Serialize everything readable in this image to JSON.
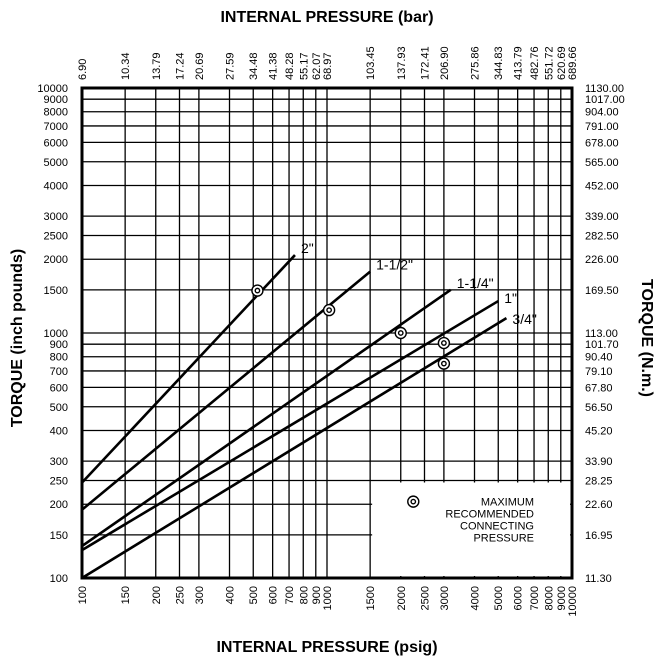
{
  "chart_data": {
    "type": "line",
    "title": "",
    "top_xlabel": "INTERNAL PRESSURE (bar)",
    "xlabel": "INTERNAL PRESSURE (psig)",
    "ylabel": "TORQUE (inch pounds)",
    "right_ylabel": "TORQUE (N.m.)",
    "xscale": "log",
    "yscale": "log",
    "xlim": [
      100,
      10000
    ],
    "ylim": [
      100,
      10000
    ],
    "grid": true,
    "x_ticks": [
      {
        "value": 100,
        "label": "100"
      },
      {
        "value": 150,
        "label": "150"
      },
      {
        "value": 200,
        "label": "200"
      },
      {
        "value": 250,
        "label": "250"
      },
      {
        "value": 300,
        "label": "300"
      },
      {
        "value": 400,
        "label": "400"
      },
      {
        "value": 500,
        "label": "500"
      },
      {
        "value": 600,
        "label": "600"
      },
      {
        "value": 700,
        "label": "700"
      },
      {
        "value": 800,
        "label": "800"
      },
      {
        "value": 900,
        "label": "900"
      },
      {
        "value": 1000,
        "label": "1000"
      },
      {
        "value": 1500,
        "label": "1500"
      },
      {
        "value": 2000,
        "label": "2000"
      },
      {
        "value": 2500,
        "label": "2500"
      },
      {
        "value": 3000,
        "label": "3000"
      },
      {
        "value": 4000,
        "label": "4000"
      },
      {
        "value": 5000,
        "label": "5000"
      },
      {
        "value": 6000,
        "label": "6000"
      },
      {
        "value": 7000,
        "label": "7000"
      },
      {
        "value": 8000,
        "label": "8000"
      },
      {
        "value": 9000,
        "label": "9000"
      },
      {
        "value": 10000,
        "label": "10000"
      }
    ],
    "top_x_ticks": [
      "6.90",
      "10.34",
      "13.79",
      "17.24",
      "20.69",
      "27.59",
      "34.48",
      "41.38",
      "48.28",
      "55.17",
      "62.07",
      "68.97",
      "103.45",
      "137.93",
      "172.41",
      "206.90",
      "275.86",
      "344.83",
      "413.79",
      "482.76",
      "551.72",
      "620.69",
      "689.66"
    ],
    "y_ticks": [
      {
        "value": 100,
        "label": "100"
      },
      {
        "value": 150,
        "label": "150"
      },
      {
        "value": 200,
        "label": "200"
      },
      {
        "value": 250,
        "label": "250"
      },
      {
        "value": 300,
        "label": "300"
      },
      {
        "value": 400,
        "label": "400"
      },
      {
        "value": 500,
        "label": "500"
      },
      {
        "value": 600,
        "label": "600"
      },
      {
        "value": 700,
        "label": "700"
      },
      {
        "value": 800,
        "label": "800"
      },
      {
        "value": 900,
        "label": "900"
      },
      {
        "value": 1000,
        "label": "1000"
      },
      {
        "value": 1500,
        "label": "1500"
      },
      {
        "value": 2000,
        "label": "2000"
      },
      {
        "value": 2500,
        "label": "2500"
      },
      {
        "value": 3000,
        "label": "3000"
      },
      {
        "value": 4000,
        "label": "4000"
      },
      {
        "value": 5000,
        "label": "5000"
      },
      {
        "value": 6000,
        "label": "6000"
      },
      {
        "value": 7000,
        "label": "7000"
      },
      {
        "value": 8000,
        "label": "8000"
      },
      {
        "value": 9000,
        "label": "9000"
      },
      {
        "value": 10000,
        "label": "10000"
      }
    ],
    "right_y_ticks": [
      "11.30",
      "16.95",
      "22.60",
      "28.25",
      "33.90",
      "45.20",
      "56.50",
      "67.80",
      "79.10",
      "90.40",
      "101.70",
      "113.00",
      "169.50",
      "226.00",
      "282.50",
      "339.00",
      "452.00",
      "565.00",
      "678.00",
      "791.00",
      "904.00",
      "1017.00",
      "1130.00"
    ],
    "series": [
      {
        "name": "2\"",
        "x": [
          100,
          740
        ],
        "y": [
          245,
          2080
        ],
        "max_pressure": {
          "x": 520,
          "y": 1490
        }
      },
      {
        "name": "1-1/2\"",
        "x": [
          100,
          1500
        ],
        "y": [
          190,
          1780
        ],
        "max_pressure": {
          "x": 1020,
          "y": 1240
        }
      },
      {
        "name": "1-1/4\"",
        "x": [
          100,
          3200
        ],
        "y": [
          135,
          1500
        ],
        "max_pressure": {
          "x": 2000,
          "y": 1000
        }
      },
      {
        "name": "1\"",
        "x": [
          100,
          5000
        ],
        "y": [
          130,
          1350
        ],
        "max_pressure": {
          "x": 3000,
          "y": 910
        }
      },
      {
        "name": "3/4\"",
        "x": [
          100,
          5400
        ],
        "y": [
          100,
          1150
        ],
        "max_pressure": {
          "x": 3000,
          "y": 750
        }
      }
    ],
    "legend": {
      "position": "bottom-right",
      "lines": [
        "MAXIMUM",
        "RECOMMENDED",
        "CONNECTING",
        "PRESSURE"
      ]
    }
  }
}
